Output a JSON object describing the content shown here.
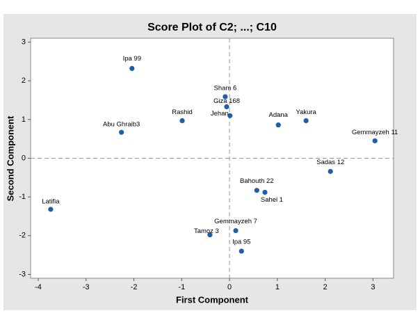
{
  "chart_data": {
    "type": "scatter",
    "title": "Score Plot of C2; ...; C10",
    "x_label": "First Component",
    "y_label": "Second Component",
    "point_labels": [
      "Ipa 99",
      "Sham 6",
      "Giza 168",
      "Jehan",
      "Adana",
      "Yakura",
      "Gemmayzeh 11",
      "Abu Ghraib3",
      "Rashid",
      "Sadas 12",
      "Bahouth 22",
      "Sahel 1",
      "Latifia",
      "Gemmayzeh 7",
      "Tamoz 3",
      "Ipa 95"
    ],
    "x": [
      -2.04,
      -0.09,
      -0.06,
      0.01,
      1.02,
      1.6,
      3.04,
      -2.26,
      -0.99,
      2.11,
      0.57,
      0.74,
      -3.74,
      0.13,
      -0.41,
      0.25
    ],
    "values": [
      2.32,
      1.59,
      1.33,
      1.1,
      0.86,
      0.97,
      0.45,
      0.67,
      0.97,
      -0.34,
      -0.83,
      -0.88,
      -1.32,
      -1.87,
      -1.98,
      -2.4
    ],
    "color": "#1f5fa8",
    "xlim": [
      -4.16,
      3.43
    ],
    "xticks": [
      -4,
      -3,
      -2,
      -1,
      0,
      1,
      2,
      3
    ],
    "ylim": [
      -3.1,
      3.1
    ],
    "yticks": [
      -3,
      -2,
      -1,
      0,
      1,
      2,
      3
    ],
    "reference_lines": [
      0,
      0
    ]
  }
}
